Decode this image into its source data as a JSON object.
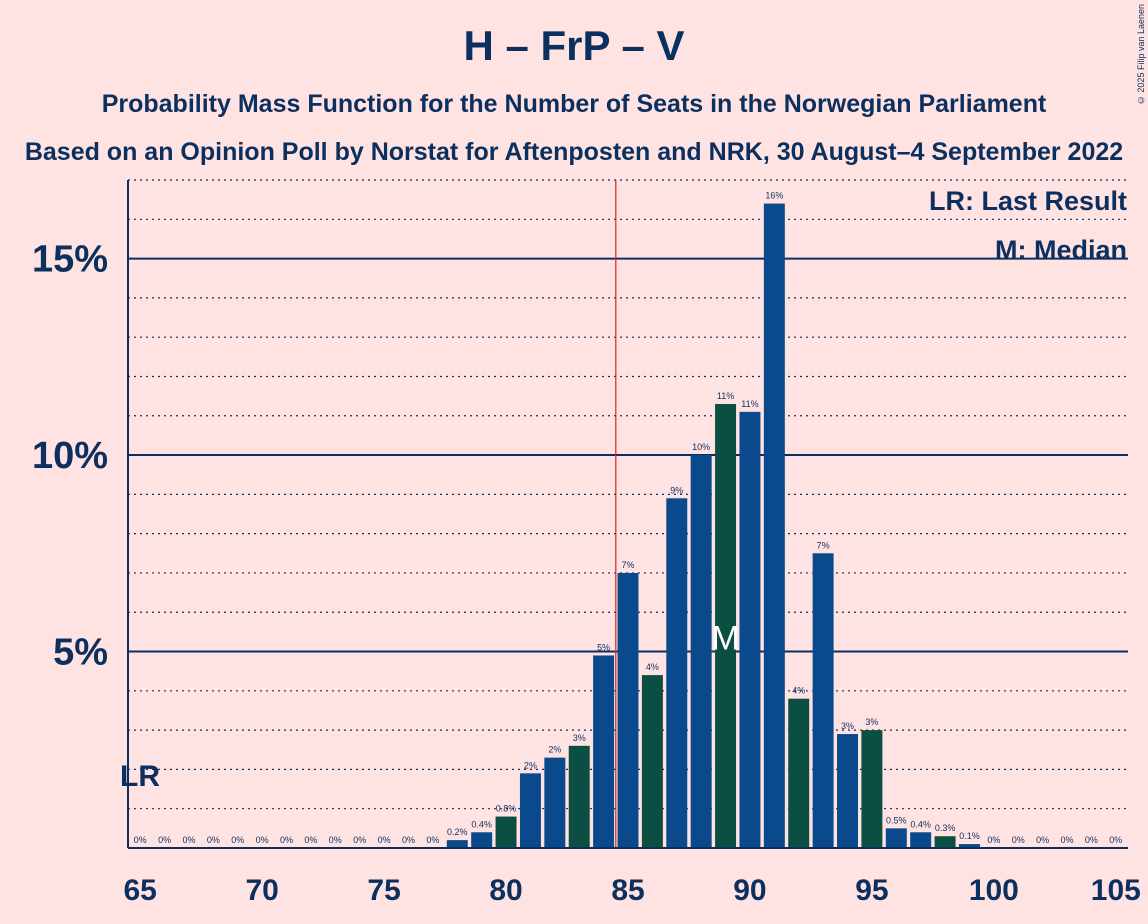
{
  "header": {
    "title": "H – FrP – V",
    "subtitle": "Probability Mass Function for the Number of Seats in the Norwegian Parliament",
    "subtitle2": "Based on an Opinion Poll by Norstat for Aftenposten and NRK, 30 August–4 September 2022",
    "copyright": "© 2025 Filip van Laenen"
  },
  "legend": {
    "lr": "LR: Last Result",
    "m": "M: Median",
    "placement": "top-right"
  },
  "colors": {
    "background": "#ffe3e3",
    "primary": "#0b2f5e",
    "bar_blue": "#0a4a8c",
    "bar_green": "#0b4f43",
    "last_result_line": "#e02020"
  },
  "chart_data": {
    "type": "bar",
    "x": [
      65,
      66,
      67,
      68,
      69,
      70,
      71,
      72,
      73,
      74,
      75,
      76,
      77,
      78,
      79,
      80,
      81,
      82,
      83,
      84,
      85,
      86,
      87,
      88,
      89,
      90,
      91,
      92,
      93,
      94,
      95,
      96,
      97,
      98,
      99,
      100,
      101,
      102,
      103,
      104,
      105
    ],
    "values": [
      0,
      0,
      0,
      0,
      0,
      0,
      0,
      0,
      0,
      0,
      0,
      0,
      0,
      0.2,
      0.4,
      0.8,
      1.9,
      2.3,
      2.6,
      4.9,
      7.0,
      4.4,
      8.9,
      10.0,
      11.3,
      11.1,
      16.4,
      3.8,
      7.5,
      2.9,
      3.0,
      0.5,
      0.4,
      0.3,
      0.1,
      0,
      0,
      0,
      0,
      0,
      0
    ],
    "data_labels": [
      "0%",
      "0%",
      "0%",
      "0%",
      "0%",
      "0%",
      "0%",
      "0%",
      "0%",
      "0%",
      "0%",
      "0%",
      "0%",
      "0.2%",
      "0.4%",
      "0.8%",
      "2%",
      "2%",
      "3%",
      "5%",
      "7%",
      "4%",
      "9%",
      "10%",
      "11%",
      "11%",
      "16%",
      "4%",
      "7%",
      "3%",
      "3%",
      "0.5%",
      "0.4%",
      "0.3%",
      "0.1%",
      "0%",
      "0%",
      "0%",
      "0%",
      "0%",
      "0%"
    ],
    "bar_colors": [
      "blue",
      "blue",
      "green",
      "blue",
      "blue",
      "green",
      "blue",
      "blue",
      "green",
      "blue",
      "blue",
      "green",
      "blue",
      "blue",
      "blue",
      "green",
      "blue",
      "blue",
      "green",
      "blue",
      "blue",
      "green",
      "blue",
      "blue",
      "green",
      "blue",
      "blue",
      "green",
      "blue",
      "blue",
      "green",
      "blue",
      "blue",
      "green",
      "blue",
      "blue",
      "green",
      "blue",
      "blue",
      "green",
      "blue"
    ],
    "x_ticks": [
      "65",
      "70",
      "75",
      "80",
      "85",
      "90",
      "95",
      "100",
      "105"
    ],
    "x_tick_values": [
      65,
      70,
      75,
      80,
      85,
      90,
      95,
      100,
      105
    ],
    "y_ticks": [
      "5%",
      "10%",
      "15%"
    ],
    "y_tick_values": [
      5,
      10,
      15
    ],
    "ylim": [
      0,
      17
    ],
    "xlim": [
      64.5,
      105.5
    ],
    "last_result": 85,
    "last_result_label": "LR",
    "median": 89,
    "median_label": "M",
    "grid": true
  }
}
